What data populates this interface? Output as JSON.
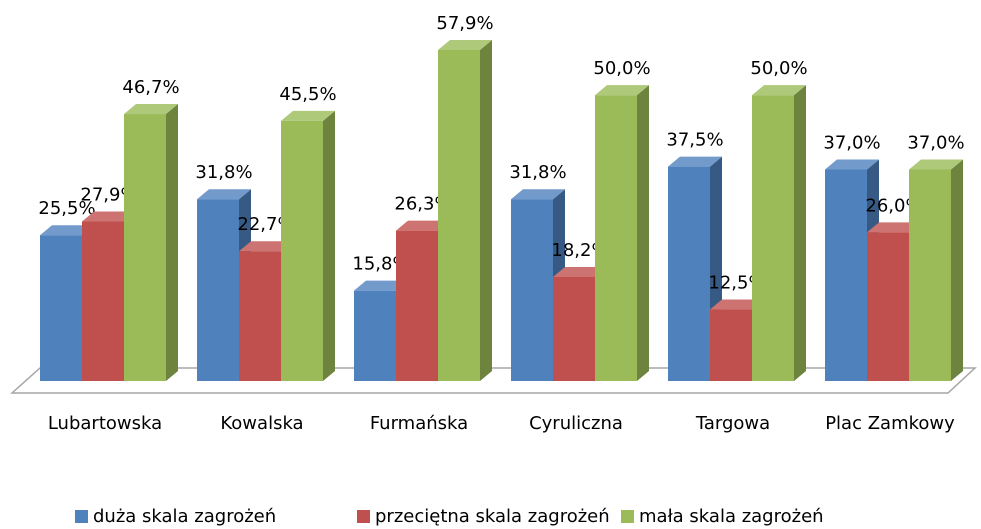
{
  "chart_data": {
    "type": "bar3d",
    "categories": [
      "Lubartowska",
      "Kowalska",
      "Furmańska",
      "Cyruliczna",
      "Targowa",
      "Plac Zamkowy"
    ],
    "series": [
      {
        "name": "duża skala zagrożeń",
        "color": "#4f81bd",
        "values": [
          25.5,
          31.8,
          15.8,
          31.8,
          37.5,
          37.0
        ],
        "value_labels": [
          "25,5%",
          "31,8%",
          "15,8%",
          "31,8%",
          "37,5%",
          "37,0%"
        ]
      },
      {
        "name": "przeciętna skala zagrożeń",
        "color": "#c0504d",
        "values": [
          27.9,
          22.7,
          26.3,
          18.2,
          12.5,
          26.0
        ],
        "value_labels": [
          "27,9%",
          "22,7%",
          "26,3%",
          "18,2%",
          "12,5%",
          "26,0%"
        ]
      },
      {
        "name": "mała skala zagrożeń",
        "color": "#9bbb59",
        "values": [
          46.7,
          45.5,
          57.9,
          50.0,
          50.0,
          37.0
        ],
        "value_labels": [
          "46,7%",
          "45,5%",
          "57,9%",
          "50,0%",
          "50,0%",
          "37,0%"
        ]
      }
    ],
    "ylim": [
      0,
      60
    ],
    "legend": "bottom"
  }
}
